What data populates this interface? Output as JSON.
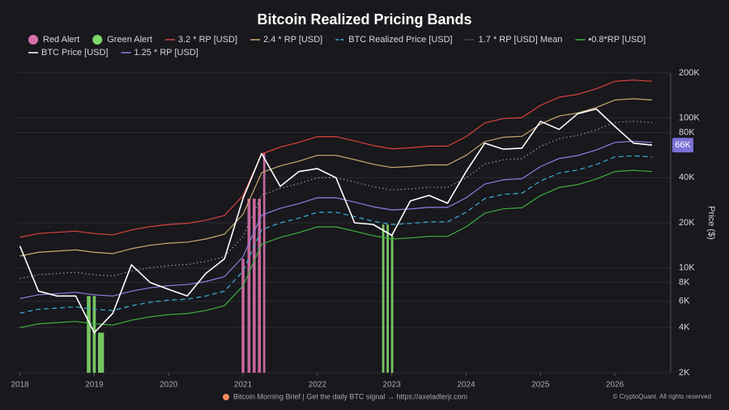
{
  "chart_data": {
    "type": "line",
    "title": "Bitcoin Realized Pricing Bands",
    "y_label": "Price ($)",
    "log_y": true,
    "grid": true,
    "x": [
      2018.0,
      2018.25,
      2018.5,
      2018.75,
      2019.0,
      2019.25,
      2019.5,
      2019.75,
      2020.0,
      2020.25,
      2020.5,
      2020.75,
      2021.0,
      2021.25,
      2021.5,
      2021.75,
      2022.0,
      2022.25,
      2022.5,
      2022.75,
      2023.0,
      2023.25,
      2023.5,
      2023.75,
      2024.0,
      2024.25,
      2024.5,
      2024.75,
      2025.0,
      2025.25,
      2025.5,
      2025.75,
      2026.0,
      2026.25,
      2026.5
    ],
    "xlim": [
      2017.95,
      2026.75
    ],
    "xticks": [
      2018,
      2019,
      2020,
      2021,
      2022,
      2023,
      2024,
      2025,
      2026
    ],
    "ylim": [
      2000,
      200000
    ],
    "yticks": [
      {
        "value": 2000,
        "label": "2K"
      },
      {
        "value": 4000,
        "label": "4K"
      },
      {
        "value": 6000,
        "label": "6K"
      },
      {
        "value": 8000,
        "label": "8K"
      },
      {
        "value": 10000,
        "label": "10K"
      },
      {
        "value": 20000,
        "label": "20K"
      },
      {
        "value": 40000,
        "label": "40K"
      },
      {
        "value": 80000,
        "label": "80K"
      },
      {
        "value": 100000,
        "label": "100K"
      },
      {
        "value": 200000,
        "label": "200K"
      }
    ],
    "alerts": [
      {
        "name": "Red Alert",
        "color": "#d86fa8",
        "spans": [
          [
            2020.98,
            2021.02
          ],
          [
            2021.06,
            2021.1
          ],
          [
            2021.13,
            2021.17
          ],
          [
            2021.2,
            2021.24
          ],
          [
            2021.27,
            2021.3
          ]
        ]
      },
      {
        "name": "Green Alert",
        "color": "#7fd86b",
        "spans": [
          [
            2018.9,
            2018.95
          ],
          [
            2018.98,
            2019.02
          ],
          [
            2019.05,
            2019.13
          ],
          [
            2022.87,
            2022.9
          ],
          [
            2022.93,
            2022.96
          ],
          [
            2022.99,
            2023.02
          ]
        ]
      }
    ],
    "series": [
      {
        "name": "3.2 * RP [USD]",
        "color": "#d9433a",
        "dash": "solid",
        "values": [
          16000,
          16960,
          17280,
          17600,
          16960,
          16640,
          17920,
          18880,
          19520,
          19840,
          20800,
          22400,
          30400,
          57600,
          64000,
          68800,
          75200,
          75200,
          70400,
          65600,
          62400,
          63360,
          64960,
          64960,
          75200,
          92800,
          99200,
          100800,
          121600,
          137600,
          144000,
          156800,
          176000,
          179200,
          176000
        ]
      },
      {
        "name": "2.4 * RP [USD]",
        "color": "#c9a96e",
        "dash": "solid",
        "values": [
          12000,
          12720,
          12960,
          13200,
          12720,
          12480,
          13440,
          14160,
          14640,
          14880,
          15600,
          16800,
          22800,
          43200,
          48000,
          51600,
          56400,
          56400,
          52800,
          49200,
          46800,
          47520,
          48720,
          48720,
          56400,
          69600,
          74400,
          75600,
          91200,
          103200,
          108000,
          117600,
          132000,
          134400,
          132000
        ]
      },
      {
        "name": "BTC Realized Price [USD]",
        "color": "#3fb1d8",
        "dash": "dashed",
        "values": [
          5000,
          5300,
          5400,
          5500,
          5300,
          5200,
          5600,
          5900,
          6100,
          6200,
          6500,
          7000,
          9500,
          18000,
          20000,
          21500,
          23500,
          23500,
          22000,
          20500,
          19500,
          19800,
          20300,
          20300,
          23500,
          29000,
          31000,
          31500,
          38000,
          43000,
          45000,
          49000,
          55000,
          56000,
          55000
        ]
      },
      {
        "name": "1.7 * RP [USD] Mean",
        "color": "#9a9aa0",
        "dash": "dotted",
        "values": [
          8500,
          9010,
          9180,
          9350,
          9010,
          8840,
          9520,
          10030,
          10370,
          10540,
          11050,
          11900,
          16150,
          30600,
          34000,
          36550,
          39950,
          39950,
          37400,
          34850,
          33150,
          33660,
          34510,
          34510,
          39950,
          49300,
          52700,
          53550,
          64600,
          73100,
          76500,
          83300,
          93500,
          95200,
          93500
        ]
      },
      {
        "name": "•0.8*RP [USD]",
        "color": "#3fae3f",
        "dash": "solid",
        "values": [
          4000,
          4240,
          4320,
          4400,
          4240,
          4160,
          4480,
          4720,
          4880,
          4960,
          5200,
          5600,
          7600,
          14400,
          16000,
          17200,
          18800,
          18800,
          17600,
          16400,
          15600,
          15840,
          16240,
          16240,
          18800,
          23200,
          24800,
          25200,
          30400,
          34400,
          36000,
          39200,
          44000,
          44800,
          44000
        ]
      },
      {
        "name": "BTC Price [USD]",
        "color": "#ffffff",
        "dash": "solid",
        "width": 1.6,
        "values": [
          14000,
          7000,
          6500,
          6500,
          3700,
          5000,
          10500,
          8000,
          7200,
          6500,
          9200,
          11500,
          29000,
          58000,
          35000,
          44000,
          46000,
          40000,
          20000,
          19500,
          16500,
          28000,
          30500,
          27000,
          44000,
          68000,
          62000,
          63000,
          95000,
          84000,
          107000,
          115000,
          88000,
          68000,
          66000
        ]
      },
      {
        "name": "1.25 * RP [USD]",
        "color": "#8f7fe0",
        "dash": "solid",
        "values": [
          6250,
          6625,
          6750,
          6875,
          6625,
          6500,
          7000,
          7375,
          7625,
          7750,
          8125,
          8750,
          11875,
          22500,
          25000,
          26875,
          29375,
          29375,
          27500,
          25625,
          24375,
          24750,
          25375,
          25375,
          29375,
          36250,
          38750,
          39375,
          47500,
          53750,
          56250,
          61250,
          68750,
          70000,
          68750
        ]
      }
    ],
    "price_series": 5,
    "last_price_label": "66K",
    "footer": "Bitcoin Morning Brief | Get the daily BTC signal → https://axeladlerjr.com",
    "copyright": "© CryptoQuant. All rights reserved"
  }
}
